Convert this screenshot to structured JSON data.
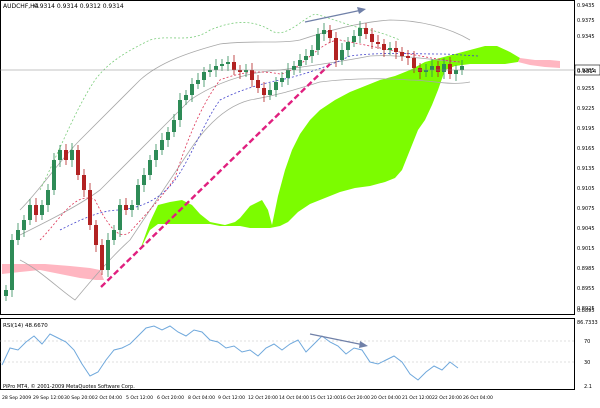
{
  "window": {
    "symbol_info": "AUDCHF,H4",
    "ohlc": "0.9314 0.9314 0.9312 0.9314",
    "current_price_tag": "0.9314",
    "copyright": "PiPro MT4, © 2001-2009 MetaQuotes Software Corp."
  },
  "main_axis": {
    "labels": [
      "0.9435",
      "0.9375",
      "0.9345",
      "0.9314",
      "0.9285",
      "0.9255",
      "0.9225",
      "0.9195",
      "0.9165",
      "0.9135",
      "0.9105",
      "0.9075",
      "0.9045",
      "0.9015",
      "0.8985",
      "0.8955",
      "0.8925",
      "0.8895"
    ]
  },
  "rsi": {
    "title": "RSI(14) 48.6670",
    "axis_labels": [
      "86.7333",
      "70",
      "30",
      "2.1"
    ]
  },
  "time_axis": {
    "labels": [
      "28 Sep 2009",
      "29 Sep 12:00",
      "30 Sep 20:00",
      "2 Oct 04:00",
      "5 Oct 12:00",
      "6 Oct 20:00",
      "8 Oct 04:00",
      "9 Oct 12:00",
      "12 Oct 20:00",
      "14 Oct 04:00",
      "15 Oct 12:00",
      "16 Oct 20:00",
      "20 Oct 04:00",
      "21 Oct 12:00",
      "22 Oct 20:00",
      "26 Oct 04:00"
    ]
  },
  "colors": {
    "cloud_bull": "#7cfc00",
    "cloud_bear": "#ffb6c1",
    "trendline": "#e0207f",
    "arrow": "#7080a8",
    "bull_candle": "#2e8b57",
    "bear_candle": "#b22222",
    "rsi_line": "#6fa8dc"
  }
}
